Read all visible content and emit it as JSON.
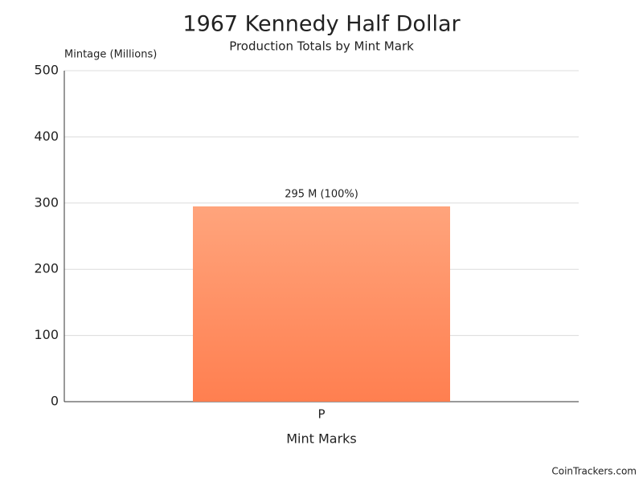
{
  "chart_data": {
    "type": "bar",
    "title": "1967 Kennedy Half Dollar",
    "subtitle": "Production Totals by Mint Mark",
    "y_label": "Mintage (Millions)",
    "x_label": "Mint Marks",
    "categories": [
      "P"
    ],
    "values": [
      295
    ],
    "value_labels": [
      "295 M (100%)"
    ],
    "color": [
      "#ffa47c",
      "#ff7f50"
    ],
    "ylim": [
      0,
      500
    ],
    "yticks": [
      0,
      100,
      200,
      300,
      400,
      500
    ],
    "grid": true,
    "credit": "CoinTrackers.com"
  }
}
